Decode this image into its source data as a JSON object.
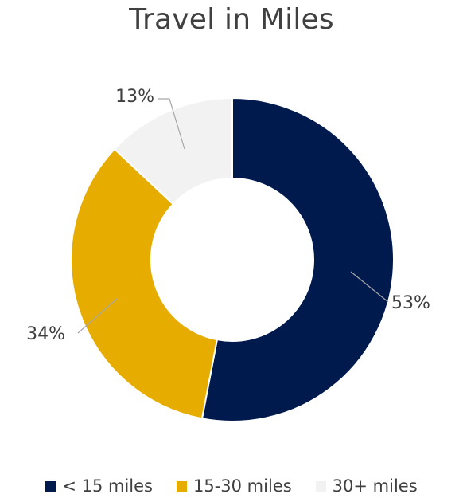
{
  "chart_data": {
    "type": "pie",
    "variant": "donut",
    "title": "Travel in Miles",
    "legend_position": "bottom",
    "slices": [
      {
        "label": "< 15 miles",
        "value": 53,
        "display": "53%",
        "color": "#001a4d"
      },
      {
        "label": "15-30 miles",
        "value": 34,
        "display": "34%",
        "color": "#e6ad00"
      },
      {
        "label": "30+ miles",
        "value": 13,
        "display": "13%",
        "color": "#f2f2f2"
      }
    ]
  }
}
